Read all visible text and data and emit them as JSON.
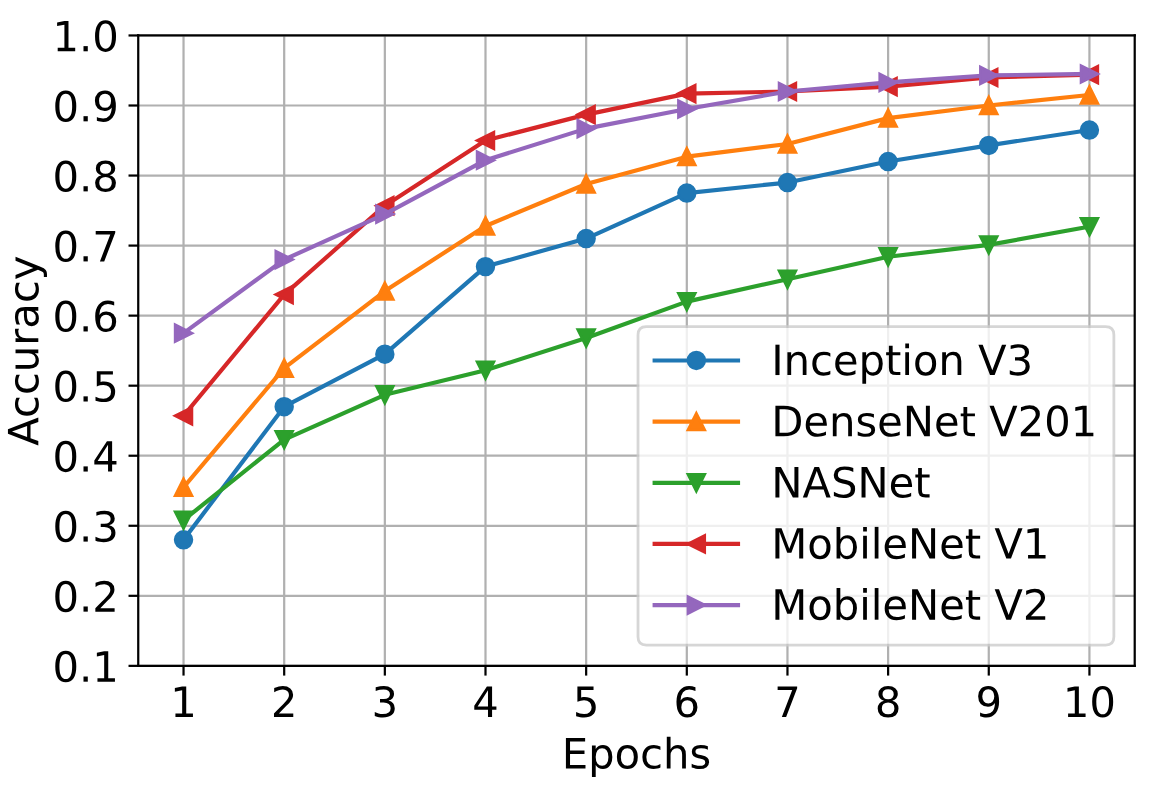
{
  "chart_data": {
    "type": "line",
    "xlabel": "Epochs",
    "ylabel": "Accuracy",
    "x": [
      1,
      2,
      3,
      4,
      5,
      6,
      7,
      8,
      9,
      10
    ],
    "xlim": [
      0.55,
      10.45
    ],
    "xticks": [
      1,
      2,
      3,
      4,
      5,
      6,
      7,
      8,
      9,
      10
    ],
    "ylim": [
      0.1,
      1.0
    ],
    "yticks": [
      0.1,
      0.2,
      0.3,
      0.4,
      0.5,
      0.6,
      0.7,
      0.8,
      0.9,
      {
        "value": 1,
        "label": "1.0"
      }
    ],
    "grid": true,
    "legend": "bottom right",
    "series": [
      {
        "name": "Inception V3",
        "color": "#1f77b4",
        "marker": "circle",
        "values": [
          0.28,
          0.47,
          0.545,
          0.67,
          0.71,
          0.775,
          0.79,
          0.82,
          0.843,
          0.865
        ]
      },
      {
        "name": "DenseNet V201",
        "color": "#ff7f0e",
        "marker": "triangle",
        "values": [
          0.355,
          0.525,
          0.635,
          0.728,
          0.788,
          0.827,
          0.845,
          0.882,
          0.9,
          0.915
        ]
      },
      {
        "name": "NASNet",
        "color": "#2ca02c",
        "marker": "triangle_down",
        "values": [
          0.308,
          0.423,
          0.487,
          0.522,
          0.568,
          0.62,
          0.652,
          0.684,
          0.701,
          0.727
        ]
      },
      {
        "name": "MobileNet V1",
        "color": "#d62728",
        "marker": "triangle_left",
        "values": [
          0.457,
          0.63,
          0.757,
          0.85,
          0.887,
          0.917,
          0.92,
          0.927,
          0.94,
          0.944
        ]
      },
      {
        "name": "MobileNet V2",
        "color": "#9467bd",
        "marker": "triangle_right",
        "values": [
          0.575,
          0.68,
          0.745,
          0.822,
          0.867,
          0.895,
          0.92,
          0.933,
          0.943,
          0.945
        ]
      }
    ]
  }
}
